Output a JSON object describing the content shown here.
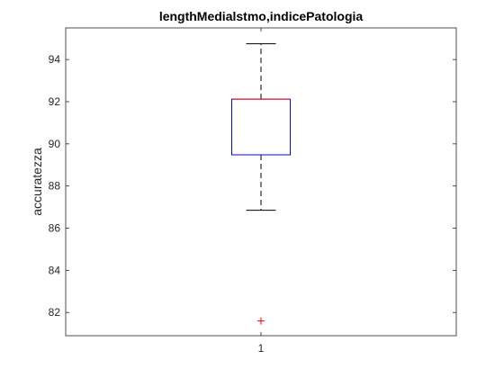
{
  "chart_data": {
    "type": "box",
    "title": "lengthMedialstmo,indicePatologia",
    "xlabel": "",
    "ylabel": "accuratezza",
    "ylim": [
      80.9,
      95.5
    ],
    "yticks": [
      82,
      84,
      86,
      88,
      90,
      92,
      94
    ],
    "categories": [
      "1"
    ],
    "series": [
      {
        "whisker_low": 86.85,
        "q1": 89.48,
        "median": 92.12,
        "q3": 92.12,
        "whisker_high": 94.75,
        "outliers": [
          81.6
        ]
      }
    ],
    "grid": false,
    "colors": {
      "box": "#0000ff",
      "median": "#ff0000",
      "whisker": "#000000",
      "outlier": "#ff0000",
      "axes": "#262626"
    }
  }
}
